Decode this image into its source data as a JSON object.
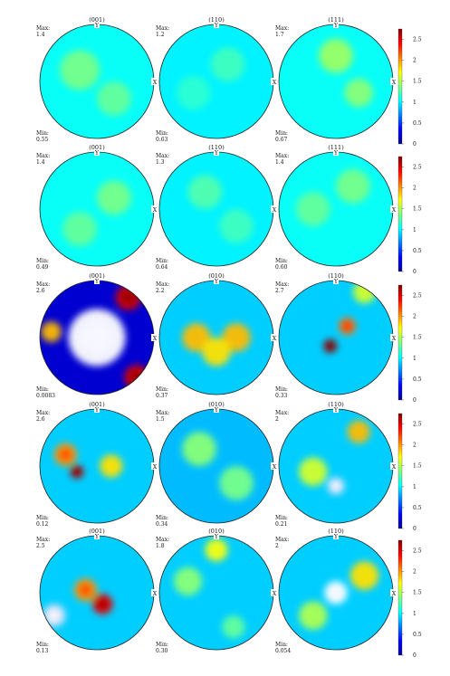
{
  "chart_data": {
    "type": "heatmap",
    "colorbar": {
      "colormap": "jet",
      "ticks": [
        "0",
        "0.5",
        "1",
        "1.5",
        "2",
        "2.5"
      ],
      "tick_values": [
        0,
        0.5,
        1,
        1.5,
        2,
        2.5
      ],
      "range": [
        0,
        2.75
      ]
    },
    "axes_labels": {
      "x": "X",
      "y": "Y"
    },
    "rows": [
      {
        "panels": [
          {
            "title": "(001)",
            "max_label": "Max:",
            "max": "1.4",
            "min_label": "Min:",
            "min": "0.55",
            "level": 1.05,
            "blobs": [
              [
                -0.3,
                0.2,
                0.35,
                1.35
              ],
              [
                0.3,
                -0.3,
                0.3,
                1.3
              ]
            ]
          },
          {
            "title": "(110)",
            "max_label": "Max:",
            "max": "1.2",
            "min_label": "Min:",
            "min": "0.63",
            "level": 1.0,
            "blobs": [
              [
                0.2,
                0.3,
                0.3,
                1.2
              ],
              [
                -0.4,
                -0.2,
                0.3,
                1.15
              ]
            ]
          },
          {
            "title": "(111)",
            "max_label": "Max:",
            "max": "1.7",
            "min_label": "Min:",
            "min": "0.67",
            "level": 1.05,
            "blobs": [
              [
                0.0,
                0.45,
                0.3,
                1.45
              ],
              [
                0.4,
                -0.2,
                0.25,
                1.4
              ]
            ]
          }
        ]
      },
      {
        "panels": [
          {
            "title": "(001)",
            "max_label": "Max:",
            "max": "1.4",
            "min_label": "Min:",
            "min": "0.49",
            "level": 1.05,
            "blobs": [
              [
                0.3,
                0.2,
                0.3,
                1.35
              ],
              [
                -0.3,
                -0.35,
                0.3,
                1.3
              ]
            ]
          },
          {
            "title": "(110)",
            "max_label": "Max:",
            "max": "1.3",
            "min_label": "Min:",
            "min": "0.64",
            "level": 1.0,
            "blobs": [
              [
                -0.2,
                0.3,
                0.3,
                1.25
              ],
              [
                0.35,
                -0.3,
                0.3,
                1.2
              ]
            ]
          },
          {
            "title": "(111)",
            "max_label": "Max:",
            "max": "1.4",
            "min_label": "Min:",
            "min": "0.60",
            "level": 1.05,
            "blobs": [
              [
                0.3,
                0.4,
                0.3,
                1.35
              ],
              [
                -0.4,
                0.0,
                0.3,
                1.3
              ]
            ]
          }
        ]
      },
      {
        "panels": [
          {
            "title": "(001)",
            "max_label": "Max:",
            "max": "2.6",
            "min_label": "Min:",
            "min": "0.0083",
            "level": 0.2,
            "blobs": [
              [
                0.55,
                0.7,
                0.22,
                2.5
              ],
              [
                0.7,
                -0.7,
                0.22,
                2.5
              ],
              [
                -0.8,
                0.1,
                0.18,
                1.9
              ],
              [
                0.0,
                0.0,
                0.5,
                0.05
              ]
            ]
          },
          {
            "title": "(010)",
            "max_label": "Max:",
            "max": "2.2",
            "min_label": "Min:",
            "min": "0.37",
            "level": 0.9,
            "blobs": [
              [
                -0.35,
                0.0,
                0.25,
                1.9
              ],
              [
                0.35,
                0.0,
                0.25,
                1.9
              ],
              [
                0.0,
                -0.25,
                0.25,
                1.8
              ]
            ]
          },
          {
            "title": "(110)",
            "max_label": "Max:",
            "max": "2.7",
            "min_label": "Min:",
            "min": "0.33",
            "level": 0.9,
            "blobs": [
              [
                -0.1,
                -0.15,
                0.12,
                2.7
              ],
              [
                0.2,
                0.2,
                0.15,
                2.1
              ],
              [
                0.5,
                0.8,
                0.2,
                1.6
              ]
            ]
          }
        ]
      },
      {
        "panels": [
          {
            "title": "(001)",
            "max_label": "Max:",
            "max": "2.6",
            "min_label": "Min:",
            "min": "0.12",
            "level": 0.9,
            "blobs": [
              [
                -0.35,
                -0.1,
                0.12,
                2.6
              ],
              [
                -0.55,
                0.2,
                0.2,
                2.0
              ],
              [
                0.25,
                0.0,
                0.2,
                1.8
              ]
            ]
          },
          {
            "title": "(010)",
            "max_label": "Max:",
            "max": "1.5",
            "min_label": "Min:",
            "min": "0.34",
            "level": 0.85,
            "blobs": [
              [
                -0.3,
                0.3,
                0.3,
                1.4
              ],
              [
                0.35,
                -0.3,
                0.3,
                1.35
              ]
            ]
          },
          {
            "title": "(110)",
            "max_label": "Max:",
            "max": "2",
            "min_label": "Min:",
            "min": "0.21",
            "level": 0.9,
            "blobs": [
              [
                0.4,
                0.6,
                0.2,
                1.9
              ],
              [
                -0.4,
                -0.1,
                0.25,
                1.6
              ],
              [
                0.0,
                -0.35,
                0.15,
                0.25
              ]
            ]
          }
        ]
      },
      {
        "panels": [
          {
            "title": "(001)",
            "max_label": "Max:",
            "max": "2.5",
            "min_label": "Min:",
            "min": "0.13",
            "level": 0.9,
            "blobs": [
              [
                0.1,
                -0.2,
                0.18,
                2.45
              ],
              [
                -0.2,
                0.05,
                0.2,
                2.0
              ],
              [
                -0.75,
                -0.4,
                0.2,
                0.3
              ]
            ]
          },
          {
            "title": "(010)",
            "max_label": "Max:",
            "max": "1.8",
            "min_label": "Min:",
            "min": "0.30",
            "level": 0.9,
            "blobs": [
              [
                0.0,
                0.75,
                0.2,
                1.7
              ],
              [
                -0.5,
                0.2,
                0.25,
                1.4
              ],
              [
                0.3,
                -0.6,
                0.2,
                1.3
              ]
            ]
          },
          {
            "title": "(110)",
            "max_label": "Max:",
            "max": "2",
            "min_label": "Min:",
            "min": "0.054",
            "level": 0.9,
            "blobs": [
              [
                0.0,
                0.0,
                0.2,
                0.1
              ],
              [
                0.5,
                0.3,
                0.25,
                1.8
              ],
              [
                -0.4,
                -0.4,
                0.25,
                1.5
              ]
            ]
          }
        ]
      }
    ]
  }
}
